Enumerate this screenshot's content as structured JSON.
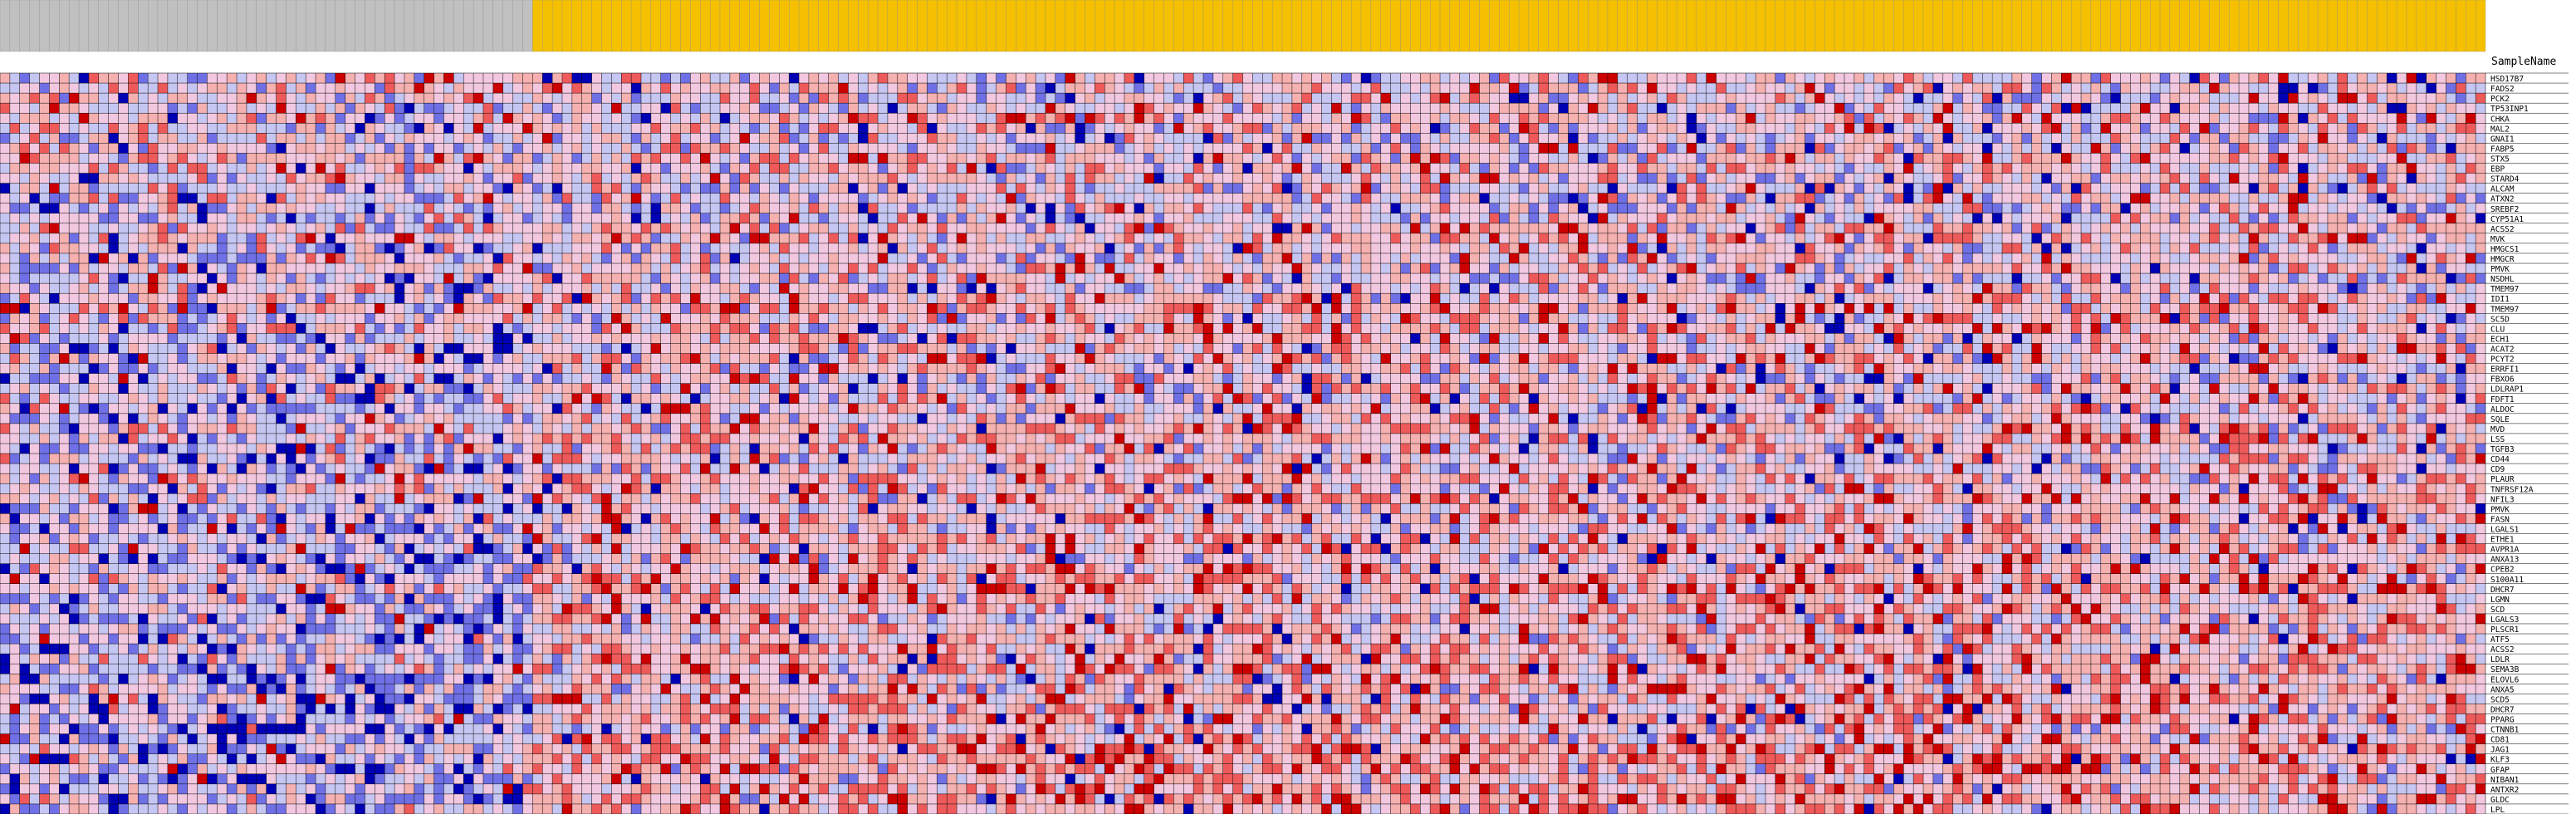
{
  "chart_data": {
    "type": "heatmap",
    "title": "",
    "xlabel": "",
    "ylabel": "",
    "header_label": "SampleName",
    "colors": {
      "high": "#cc0000",
      "mid_high": "#ee5a5a",
      "low_high": "#f5b0b0",
      "neutral_pink": "#f2c8e0",
      "low": "#c6c6f2",
      "mid_low": "#7070e6",
      "very_low": "#0000b4",
      "class_a_header": "#c0c0c0",
      "class_b_header": "#f4c000",
      "grid": "#000000"
    },
    "sample_classes": {
      "class_a_count": 54,
      "class_b_count": 198
    },
    "genes": [
      "HSD17B7",
      "FADS2",
      "PCK2",
      "TP53INP1",
      "CHKA",
      "MAL2",
      "GNAI1",
      "FABP5",
      "STX5",
      "EBP",
      "STARD4",
      "ALCAM",
      "ATXN2",
      "SREBF2",
      "CYP51A1",
      "ACSS2",
      "MVK",
      "HMGCS1",
      "HMGCR",
      "PMVK",
      "NSDHL",
      "TMEM97",
      "IDI1",
      "TMEM97",
      "SC5D",
      "CLU",
      "ECH1",
      "ACAT2",
      "PCYT2",
      "ERRFI1",
      "FBXO6",
      "LDLRAP1",
      "FDFT1",
      "ALDOC",
      "SQLE",
      "MVD",
      "LSS",
      "TGFB3",
      "CD44",
      "CD9",
      "PLAUR",
      "TNFRSF12A",
      "NFIL3",
      "PMVK",
      "FASN",
      "LGALS1",
      "ETHE1",
      "AVPR1A",
      "ANXA13",
      "CPEB2",
      "S100A11",
      "DHCR7",
      "LGMN",
      "SCD",
      "LGALS3",
      "PLSCR1",
      "ATF5",
      "ACSS2",
      "LDLR",
      "SEMA3B",
      "ELOVL6",
      "ANXA5",
      "SCD5",
      "DHCR7",
      "PPARG",
      "CTNNB1",
      "CD81",
      "JAG1",
      "KLF3",
      "GFAP",
      "NIBAN1",
      "ANTXR2",
      "GLDC",
      "LPL"
    ],
    "value_scale": [
      -3,
      -2,
      -1,
      0,
      1,
      2,
      3
    ],
    "seed": 20240611
  }
}
